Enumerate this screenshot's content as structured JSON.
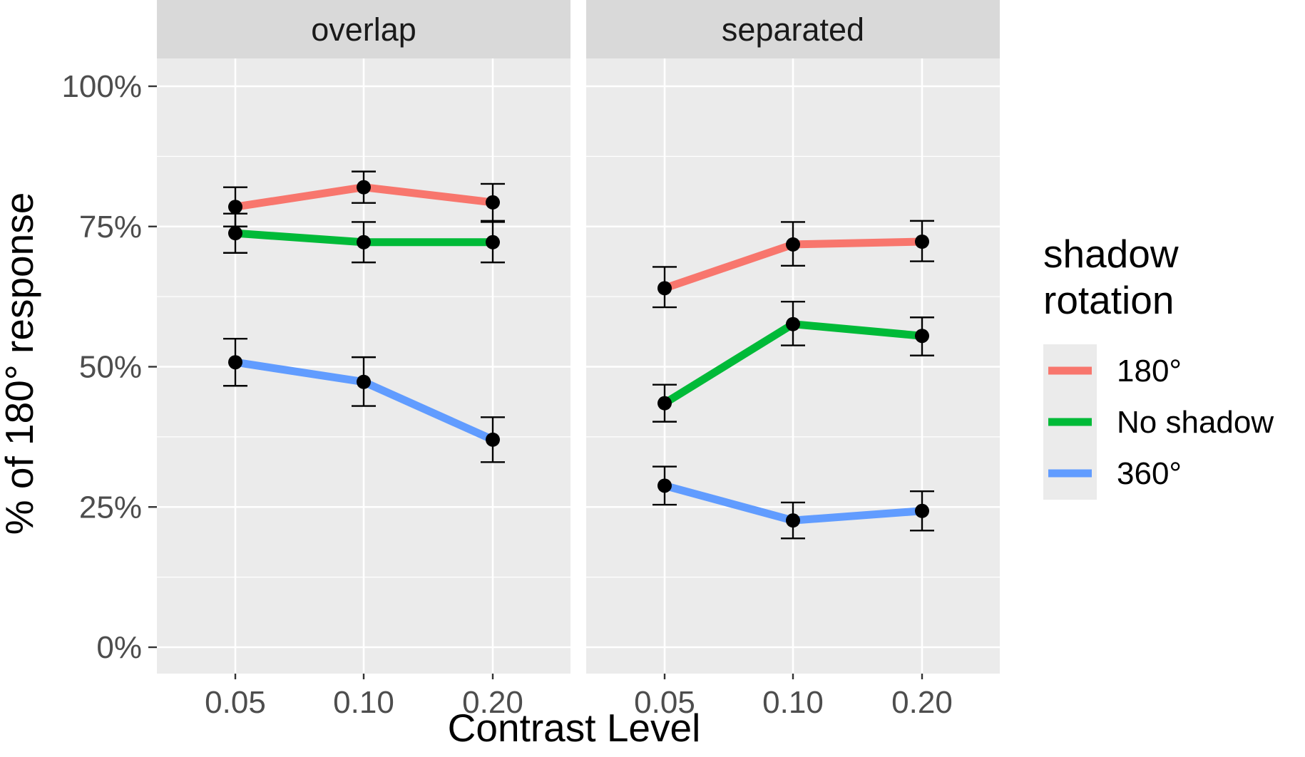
{
  "chart_data": {
    "type": "line",
    "facets": [
      "overlap",
      "separated"
    ],
    "categories": [
      "0.05",
      "0.10",
      "0.20"
    ],
    "xlabel": "Contrast Level",
    "ylabel": "% of 180° response",
    "ylim": [
      0,
      100
    ],
    "yticks": [
      0,
      25,
      50,
      75,
      100
    ],
    "ytick_labels": [
      "0%",
      "25%",
      "50%",
      "75%",
      "100%"
    ],
    "grid": true,
    "legend": {
      "title": "shadow rotation",
      "title_lines": [
        "shadow",
        "rotation"
      ],
      "placement": "right",
      "entries": [
        "180°",
        "No shadow",
        "360°"
      ]
    },
    "series": [
      {
        "name": "180°",
        "color": "#F8766D",
        "overlap": {
          "values": [
            78.5,
            82.0,
            79.3
          ],
          "ymin": [
            75.0,
            79.2,
            76.0
          ],
          "ymax": [
            82.0,
            84.8,
            82.6
          ]
        },
        "separated": {
          "values": [
            64.0,
            71.8,
            72.3
          ],
          "ymin": [
            60.6,
            68.0,
            68.8
          ],
          "ymax": [
            67.8,
            75.8,
            76.0
          ]
        }
      },
      {
        "name": "No shadow",
        "color": "#00BA38",
        "overlap": {
          "values": [
            73.8,
            72.2,
            72.2
          ],
          "ymin": [
            70.3,
            68.6,
            68.6
          ],
          "ymax": [
            77.3,
            75.8,
            75.8
          ]
        },
        "separated": {
          "values": [
            43.5,
            57.6,
            55.5
          ],
          "ymin": [
            40.2,
            53.8,
            52.0
          ],
          "ymax": [
            46.8,
            61.6,
            58.8
          ]
        }
      },
      {
        "name": "360°",
        "color": "#619CFF",
        "overlap": {
          "values": [
            50.8,
            47.3,
            37.0
          ],
          "ymin": [
            46.6,
            43.0,
            33.0
          ],
          "ymax": [
            55.0,
            51.7,
            41.0
          ]
        },
        "separated": {
          "values": [
            28.8,
            22.6,
            24.3
          ],
          "ymin": [
            25.4,
            19.4,
            20.8
          ],
          "ymax": [
            32.2,
            25.8,
            27.8
          ]
        }
      }
    ]
  }
}
